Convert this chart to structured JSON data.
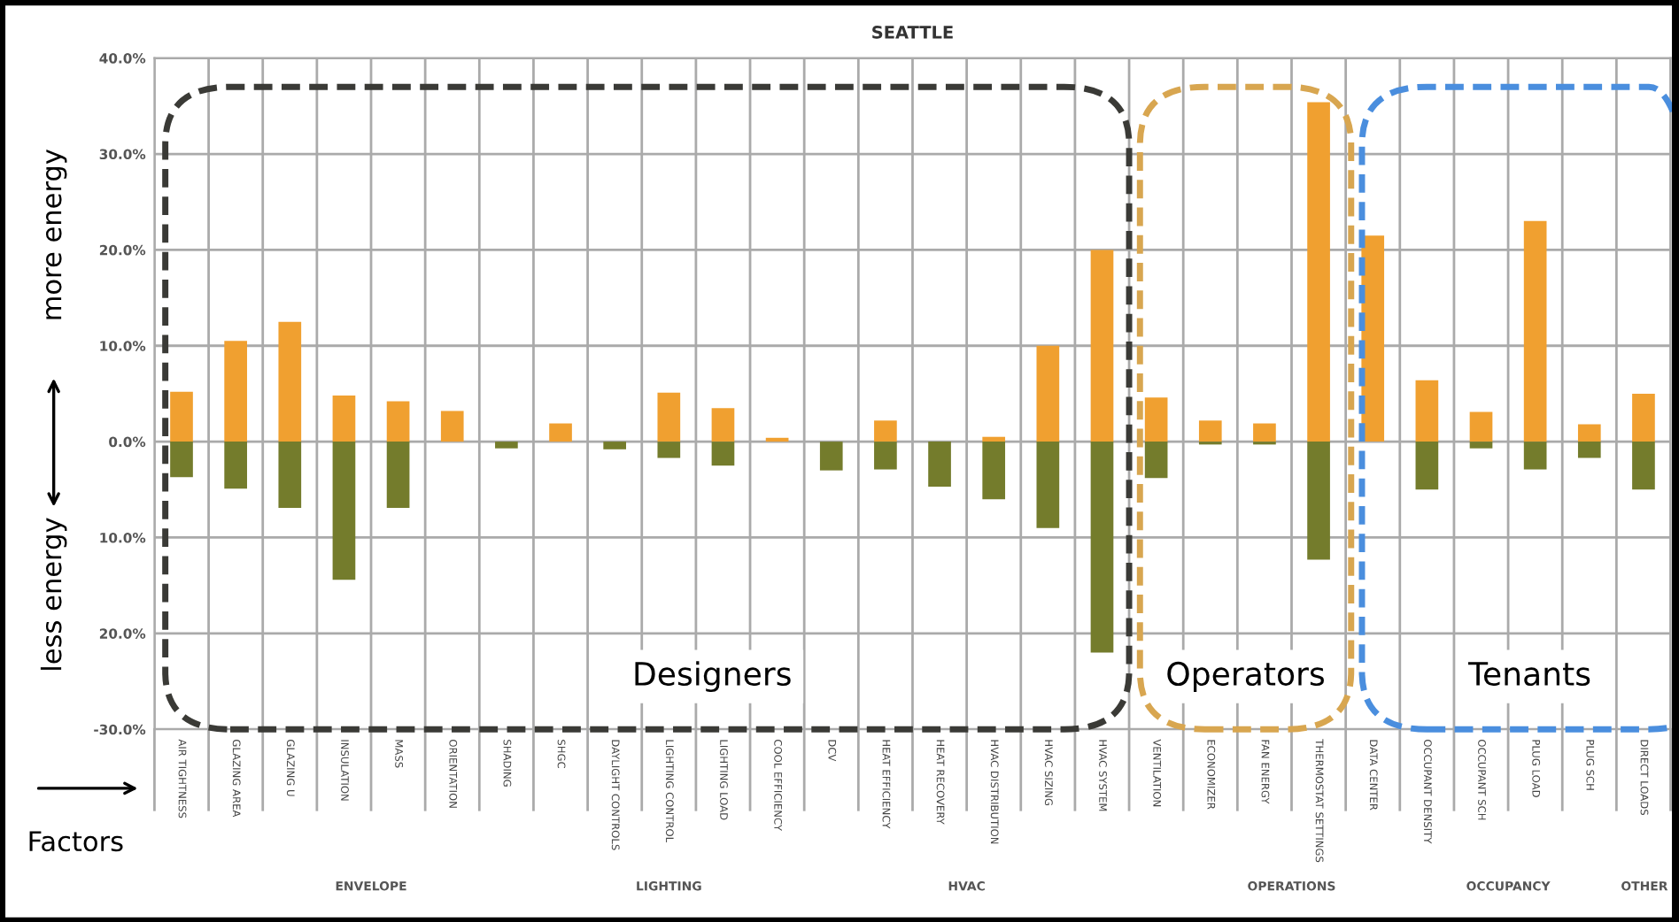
{
  "chart_data": {
    "type": "bar",
    "title": "SEATTLE",
    "categories": [
      "AIR TIGHTNESS",
      "GLAZING AREA",
      "GLAZING U",
      "INSULATION",
      "MASS",
      "ORIENTATION",
      "SHADING",
      "SHGC",
      "DAYLIGHT CONTROLS",
      "LIGHTING CONTROL",
      "LIGHTING LOAD",
      "COOL EFFICIENCY",
      "DCV",
      "HEAT EFFICIENCY",
      "HEAT RECOVERY",
      "HVAC DISTRIBUTION",
      "HVAC SIZING",
      "HVAC SYSTEM",
      "VENTILATION",
      "ECONOMIZER",
      "FAN ENERGY",
      "THERMOSTAT SETTINGS",
      "DATA CENTER",
      "OCCUPANT DENSITY",
      "OCCUPANT SCH",
      "PLUG LOAD",
      "PLUG SCH",
      "DIRECT LOADS"
    ],
    "series": [
      {
        "color": "#f0a030",
        "values": [
          5.2,
          10.5,
          12.5,
          4.8,
          4.2,
          3.2,
          null,
          1.9,
          null,
          5.1,
          3.5,
          0.4,
          null,
          2.2,
          null,
          0.5,
          10.0,
          20.0,
          4.6,
          2.2,
          1.9,
          35.4,
          21.5,
          6.4,
          3.1,
          23.0,
          1.8,
          5.0
        ]
      },
      {
        "color": "#747c2c",
        "values": [
          -3.7,
          -4.9,
          -6.9,
          -14.4,
          -6.9,
          null,
          -0.7,
          null,
          -0.8,
          -1.7,
          -2.5,
          null,
          -3.0,
          -2.9,
          -4.7,
          -6.0,
          -9.0,
          -22.0,
          -3.8,
          -0.3,
          -0.3,
          -12.3,
          null,
          -5.0,
          -0.7,
          -2.9,
          -1.7,
          -5.0
        ]
      }
    ],
    "ylim": [
      -30,
      40
    ],
    "yticks": [
      {
        "value": -30,
        "label": "-30.0%"
      },
      {
        "value": -20,
        "label": "20.0%"
      },
      {
        "value": -10,
        "label": "10.0%"
      },
      {
        "value": 0,
        "label": "0.0%"
      },
      {
        "value": 10,
        "label": "10.0%"
      },
      {
        "value": 20,
        "label": "20.0%"
      },
      {
        "value": 30,
        "label": "30.0%"
      },
      {
        "value": 40,
        "label": "40.0%"
      }
    ],
    "grid": true,
    "stacked": true,
    "annotations": [
      "ENVELOPE",
      "LIGHTING",
      "HVAC",
      "OPERATIONS",
      "OCCUPANCY",
      "OTHER",
      "Designers",
      "Operators",
      "Tenants",
      "more energy",
      "less energy",
      "Factors"
    ]
  }
}
